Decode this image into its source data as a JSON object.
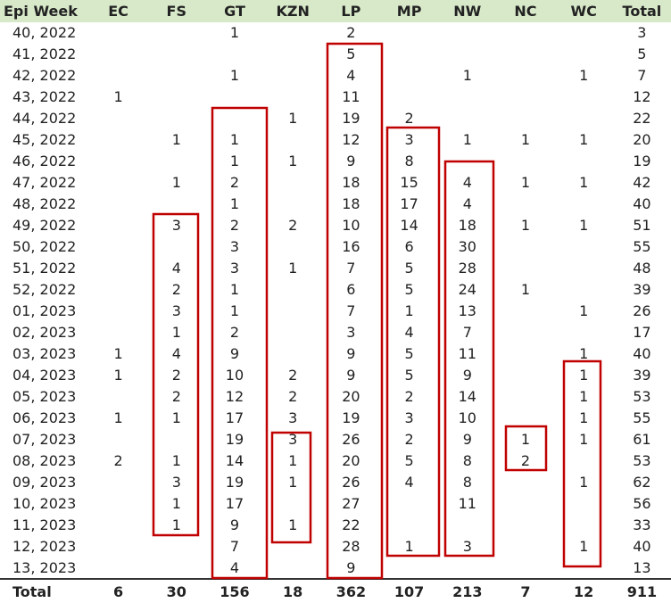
{
  "table": {
    "columns": [
      "Epi Week",
      "EC",
      "FS",
      "GT",
      "KZN",
      "LP",
      "MP",
      "NW",
      "NC",
      "WC",
      "Total"
    ],
    "rows": [
      [
        "40, 2022",
        null,
        null,
        1,
        null,
        2,
        null,
        null,
        null,
        null,
        3
      ],
      [
        "41, 2022",
        null,
        null,
        null,
        null,
        5,
        null,
        null,
        null,
        null,
        5
      ],
      [
        "42, 2022",
        null,
        null,
        1,
        null,
        4,
        null,
        1,
        null,
        1,
        7
      ],
      [
        "43, 2022",
        1,
        null,
        null,
        null,
        11,
        null,
        null,
        null,
        null,
        12
      ],
      [
        "44, 2022",
        null,
        null,
        null,
        1,
        19,
        2,
        null,
        null,
        null,
        22
      ],
      [
        "45, 2022",
        null,
        1,
        1,
        null,
        12,
        3,
        1,
        1,
        1,
        20
      ],
      [
        "46, 2022",
        null,
        null,
        1,
        1,
        9,
        8,
        null,
        null,
        null,
        19
      ],
      [
        "47, 2022",
        null,
        1,
        2,
        null,
        18,
        15,
        4,
        1,
        1,
        42
      ],
      [
        "48, 2022",
        null,
        null,
        1,
        null,
        18,
        17,
        4,
        null,
        null,
        40
      ],
      [
        "49, 2022",
        null,
        3,
        2,
        2,
        10,
        14,
        18,
        1,
        1,
        51
      ],
      [
        "50, 2022",
        null,
        null,
        3,
        null,
        16,
        6,
        30,
        null,
        null,
        55
      ],
      [
        "51, 2022",
        null,
        4,
        3,
        1,
        7,
        5,
        28,
        null,
        null,
        48
      ],
      [
        "52, 2022",
        null,
        2,
        1,
        null,
        6,
        5,
        24,
        1,
        null,
        39
      ],
      [
        "01, 2023",
        null,
        3,
        1,
        null,
        7,
        1,
        13,
        null,
        1,
        26
      ],
      [
        "02, 2023",
        null,
        1,
        2,
        null,
        3,
        4,
        7,
        null,
        null,
        17
      ],
      [
        "03, 2023",
        1,
        4,
        9,
        null,
        9,
        5,
        11,
        null,
        1,
        40
      ],
      [
        "04, 2023",
        1,
        2,
        10,
        2,
        9,
        5,
        9,
        null,
        1,
        39
      ],
      [
        "05, 2023",
        null,
        2,
        12,
        2,
        20,
        2,
        14,
        null,
        1,
        53
      ],
      [
        "06, 2023",
        1,
        1,
        17,
        3,
        19,
        3,
        10,
        null,
        1,
        55
      ],
      [
        "07, 2023",
        null,
        null,
        19,
        3,
        26,
        2,
        9,
        1,
        1,
        61
      ],
      [
        "08, 2023",
        2,
        1,
        14,
        1,
        20,
        5,
        8,
        2,
        null,
        53
      ],
      [
        "09, 2023",
        null,
        3,
        19,
        1,
        26,
        4,
        8,
        null,
        1,
        62
      ],
      [
        "10, 2023",
        null,
        1,
        17,
        null,
        27,
        null,
        11,
        null,
        null,
        56
      ],
      [
        "11, 2023",
        null,
        1,
        9,
        1,
        22,
        null,
        null,
        null,
        null,
        33
      ],
      [
        "12, 2023",
        null,
        null,
        7,
        null,
        28,
        1,
        3,
        null,
        1,
        40
      ],
      [
        "13, 2023",
        null,
        null,
        4,
        null,
        9,
        null,
        null,
        null,
        null,
        13
      ]
    ],
    "total": [
      "Total",
      6,
      30,
      156,
      18,
      362,
      107,
      213,
      7,
      12,
      911
    ]
  }
}
